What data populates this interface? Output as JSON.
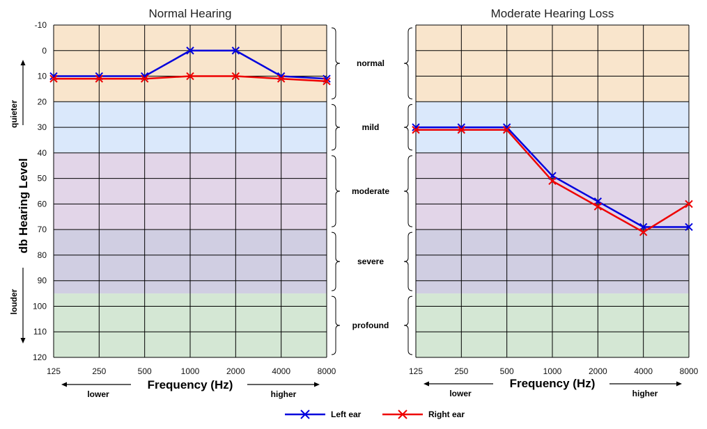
{
  "chart_data": [
    {
      "type": "line",
      "title": "Normal Hearing",
      "xlabel": "Frequency (Hz)",
      "ylabel": "db Hearing Level",
      "categories": [
        "125",
        "250",
        "500",
        "1000",
        "2000",
        "4000",
        "8000"
      ],
      "ylim": [
        -10,
        120
      ],
      "y_inverted": true,
      "y_ticks": [
        "-10",
        "0",
        "10",
        "20",
        "30",
        "40",
        "50",
        "60",
        "70",
        "80",
        "90",
        "100",
        "110",
        "120"
      ],
      "series": [
        {
          "name": "Left ear",
          "color": "#0000dd",
          "values": [
            10,
            10,
            10,
            0,
            0,
            10,
            11
          ]
        },
        {
          "name": "Right ear",
          "color": "#ee0000",
          "values": [
            11,
            11,
            11,
            10,
            10,
            11,
            12
          ]
        }
      ]
    },
    {
      "type": "line",
      "title": "Moderate Hearing Loss",
      "xlabel": "Frequency (Hz)",
      "categories": [
        "125",
        "250",
        "500",
        "1000",
        "2000",
        "4000",
        "8000"
      ],
      "ylim": [
        -10,
        120
      ],
      "y_inverted": true,
      "series": [
        {
          "name": "Left ear",
          "color": "#0000dd",
          "values": [
            30,
            30,
            30,
            49,
            59,
            69,
            69
          ]
        },
        {
          "name": "Right ear",
          "color": "#ee0000",
          "values": [
            31,
            31,
            31,
            51,
            61,
            71,
            60
          ]
        }
      ]
    }
  ],
  "bands": [
    {
      "label": "normal",
      "from": -10,
      "to": 20,
      "color": "#f9e5cc"
    },
    {
      "label": "mild",
      "from": 20,
      "to": 40,
      "color": "#dae8fb"
    },
    {
      "label": "moderate",
      "from": 40,
      "to": 70,
      "color": "#e2d5e8"
    },
    {
      "label": "severe",
      "from": 70,
      "to": 95,
      "color": "#d0cee2"
    },
    {
      "label": "profound",
      "from": 95,
      "to": 120,
      "color": "#d4e7d4"
    }
  ],
  "labels": {
    "quieter": "quieter",
    "louder": "louder",
    "lower": "lower",
    "higher": "higher"
  },
  "legend": {
    "items": [
      {
        "name": "Left ear",
        "color": "#0000dd"
      },
      {
        "name": "Right ear",
        "color": "#ee0000"
      }
    ]
  }
}
